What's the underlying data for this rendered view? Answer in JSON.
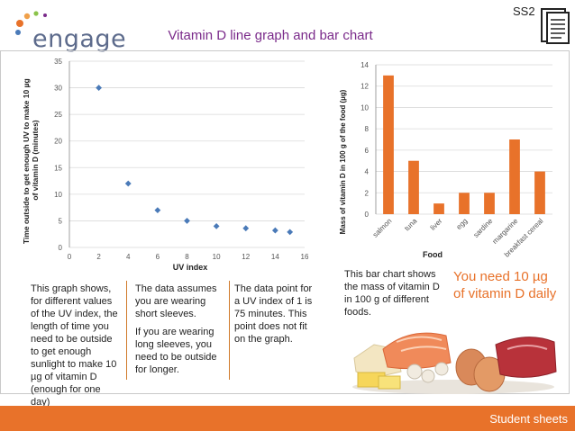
{
  "header": {
    "logo_text": "engage",
    "title": "Vitamin D line graph and bar chart",
    "sheet_code": "SS2"
  },
  "chart_data": [
    {
      "type": "scatter",
      "title": "",
      "xlabel": "UV index",
      "ylabel": "Time outside to get enough UV to make 10 µg of vitamin D (minutes)",
      "xlim": [
        0,
        16
      ],
      "ylim": [
        0,
        35
      ],
      "xticks": [
        0,
        2,
        4,
        6,
        8,
        10,
        12,
        14,
        16
      ],
      "yticks": [
        0,
        5,
        10,
        15,
        20,
        25,
        30,
        35
      ],
      "grid": "y",
      "marker_color": "#4a7ab8",
      "points": [
        {
          "x": 2,
          "y": 30
        },
        {
          "x": 4,
          "y": 12
        },
        {
          "x": 6,
          "y": 7
        },
        {
          "x": 8,
          "y": 5
        },
        {
          "x": 10,
          "y": 4
        },
        {
          "x": 12,
          "y": 3.6
        },
        {
          "x": 14,
          "y": 3.2
        },
        {
          "x": 15,
          "y": 2.9
        }
      ]
    },
    {
      "type": "bar",
      "title": "",
      "xlabel": "Food",
      "ylabel": "Mass of vitamin D in 100 g of the food (µg)",
      "ylim": [
        0,
        14
      ],
      "yticks": [
        0,
        2,
        4,
        6,
        8,
        10,
        12,
        14
      ],
      "grid": "y",
      "bar_color": "#e8722a",
      "categories": [
        "salmon",
        "tuna",
        "liver",
        "egg",
        "sardine",
        "margarine",
        "breakfast cereal"
      ],
      "values": [
        13,
        5,
        1,
        2,
        2,
        7,
        4
      ]
    }
  ],
  "text": {
    "desc1": "This graph shows, for different values of the UV index, the length of time you need to be outside to get enough sunlight to make 10 µg of  vitamin D (enough for one day)",
    "desc2a": "The data assumes you are wearing short sleeves.",
    "desc2b": "If you are wearing long sleeves, you need to be outside for longer.",
    "desc3": "The data point for a UV index of 1 is 75 minutes. This point does not fit on the graph.",
    "bar_note": "This bar chart shows the mass of vitamin D in 100 g of different foods.",
    "callout": "You need 10 µg of vitamin D daily"
  },
  "footer": {
    "label": "Student sheets"
  },
  "colors": {
    "accent": "#e8722a",
    "title": "#7a2a8a",
    "marker": "#4a7ab8"
  }
}
